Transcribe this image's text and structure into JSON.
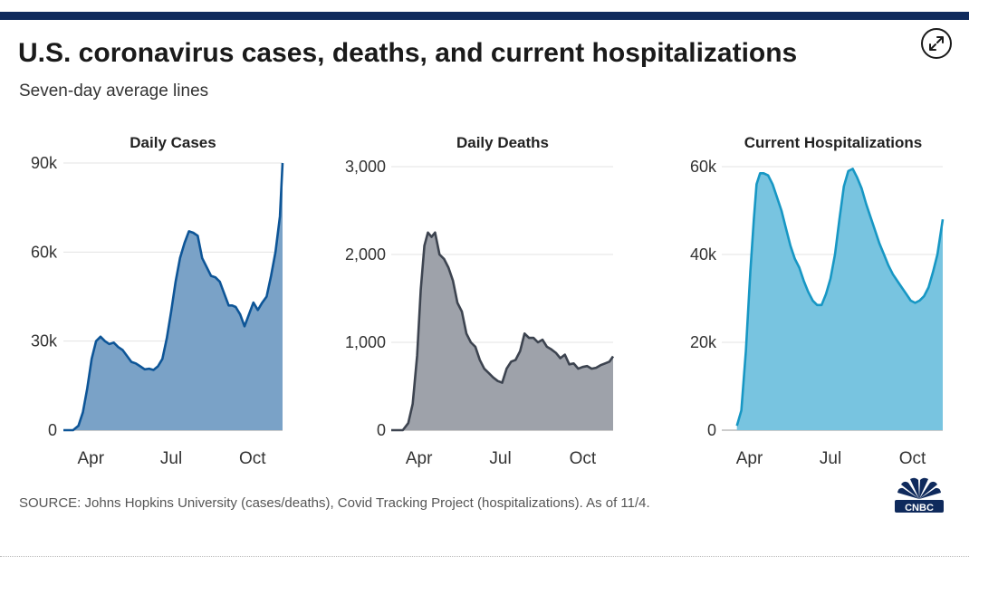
{
  "header": {
    "title": "U.S. coronavirus cases, deaths, and current hospitalizations",
    "subtitle": "Seven-day average lines"
  },
  "expand_icon": "expand-arrows-icon",
  "footer": {
    "source": "SOURCE: Johns Hopkins University (cases/deaths), Covid Tracking Project (hospitalizations). As of 11/4.",
    "logo": "CNBC"
  },
  "colors": {
    "top_bar": "#0f2a5c",
    "cases_fill": "#7aa2c7",
    "cases_line": "#0d5597",
    "deaths_fill": "#9ea2aa",
    "deaths_line": "#3d4450",
    "hosp_fill": "#78c4e0",
    "hosp_line": "#1797c4"
  },
  "chart_data": [
    {
      "type": "area",
      "title": "Daily Cases",
      "x_labels": [
        "Apr",
        "Jul",
        "Oct"
      ],
      "y_tick_labels": [
        "0",
        "30k",
        "60k",
        "90k"
      ],
      "y_ticks": [
        0,
        30000,
        60000,
        90000
      ],
      "ylim": [
        0,
        90000
      ],
      "xlim": [
        "2020-03-01",
        "2020-11-04"
      ],
      "grid": true,
      "series": [
        {
          "x": [
            "2020-03-01",
            "2020-03-12",
            "2020-03-18",
            "2020-03-23",
            "2020-03-28",
            "2020-04-02",
            "2020-04-07",
            "2020-04-12",
            "2020-04-17",
            "2020-04-22",
            "2020-04-27",
            "2020-05-02",
            "2020-05-07",
            "2020-05-12",
            "2020-05-17",
            "2020-05-22",
            "2020-05-27",
            "2020-06-01",
            "2020-06-06",
            "2020-06-11",
            "2020-06-16",
            "2020-06-21",
            "2020-06-26",
            "2020-07-01",
            "2020-07-06",
            "2020-07-11",
            "2020-07-16",
            "2020-07-21",
            "2020-07-26",
            "2020-07-31",
            "2020-08-05",
            "2020-08-10",
            "2020-08-15",
            "2020-08-20",
            "2020-08-25",
            "2020-08-30",
            "2020-09-04",
            "2020-09-08",
            "2020-09-12",
            "2020-09-17",
            "2020-09-22",
            "2020-09-27",
            "2020-10-02",
            "2020-10-07",
            "2020-10-12",
            "2020-10-17",
            "2020-10-22",
            "2020-10-27",
            "2020-11-01",
            "2020-11-04"
          ],
          "values": [
            0,
            0,
            1500,
            6000,
            14000,
            24000,
            30000,
            31500,
            30000,
            29000,
            29500,
            28000,
            27000,
            25000,
            23000,
            22500,
            21500,
            20500,
            20700,
            20300,
            21500,
            24000,
            31000,
            40000,
            50000,
            58000,
            63000,
            67000,
            66500,
            65500,
            58000,
            55000,
            52000,
            51500,
            50000,
            46000,
            42000,
            42000,
            41500,
            39000,
            35000,
            39000,
            43000,
            40500,
            43000,
            45000,
            52000,
            60000,
            72000,
            90000
          ]
        }
      ]
    },
    {
      "type": "area",
      "title": "Daily Deaths",
      "x_labels": [
        "Apr",
        "Jul",
        "Oct"
      ],
      "y_tick_labels": [
        "0",
        "1,000",
        "2,000",
        "3,000"
      ],
      "y_ticks": [
        0,
        1000,
        2000,
        3000
      ],
      "ylim": [
        0,
        3000
      ],
      "xlim": [
        "2020-03-01",
        "2020-11-04"
      ],
      "grid": true,
      "series": [
        {
          "x": [
            "2020-03-01",
            "2020-03-14",
            "2020-03-20",
            "2020-03-25",
            "2020-03-30",
            "2020-04-03",
            "2020-04-07",
            "2020-04-11",
            "2020-04-15",
            "2020-04-19",
            "2020-04-24",
            "2020-04-29",
            "2020-05-04",
            "2020-05-09",
            "2020-05-14",
            "2020-05-19",
            "2020-05-24",
            "2020-05-29",
            "2020-06-03",
            "2020-06-08",
            "2020-06-13",
            "2020-06-18",
            "2020-06-23",
            "2020-06-28",
            "2020-07-03",
            "2020-07-08",
            "2020-07-13",
            "2020-07-18",
            "2020-07-23",
            "2020-07-28",
            "2020-08-02",
            "2020-08-07",
            "2020-08-12",
            "2020-08-17",
            "2020-08-22",
            "2020-08-27",
            "2020-09-01",
            "2020-09-06",
            "2020-09-11",
            "2020-09-16",
            "2020-09-21",
            "2020-09-26",
            "2020-10-01",
            "2020-10-06",
            "2020-10-11",
            "2020-10-16",
            "2020-10-21",
            "2020-10-26",
            "2020-10-31",
            "2020-11-04"
          ],
          "values": [
            0,
            0,
            80,
            300,
            850,
            1600,
            2100,
            2250,
            2200,
            2250,
            2000,
            1950,
            1850,
            1700,
            1450,
            1350,
            1100,
            1000,
            950,
            800,
            700,
            650,
            600,
            560,
            540,
            700,
            780,
            800,
            900,
            1100,
            1050,
            1050,
            1000,
            1030,
            950,
            920,
            880,
            820,
            860,
            750,
            760,
            700,
            720,
            730,
            700,
            710,
            740,
            760,
            780,
            840
          ]
        }
      ]
    },
    {
      "type": "area",
      "title": "Current Hospitalizations",
      "x_labels": [
        "Apr",
        "Jul",
        "Oct"
      ],
      "y_tick_labels": [
        "0",
        "20k",
        "40k",
        "60k"
      ],
      "y_ticks": [
        0,
        20000,
        40000,
        60000
      ],
      "ylim": [
        0,
        60000
      ],
      "xlim": [
        "2020-03-01",
        "2020-11-04"
      ],
      "grid": true,
      "series": [
        {
          "x": [
            "2020-03-18",
            "2020-03-23",
            "2020-03-28",
            "2020-04-02",
            "2020-04-06",
            "2020-04-09",
            "2020-04-13",
            "2020-04-17",
            "2020-04-22",
            "2020-04-27",
            "2020-05-02",
            "2020-05-07",
            "2020-05-12",
            "2020-05-17",
            "2020-05-22",
            "2020-05-27",
            "2020-06-01",
            "2020-06-06",
            "2020-06-11",
            "2020-06-16",
            "2020-06-21",
            "2020-06-26",
            "2020-07-01",
            "2020-07-06",
            "2020-07-11",
            "2020-07-16",
            "2020-07-21",
            "2020-07-26",
            "2020-07-31",
            "2020-08-05",
            "2020-08-10",
            "2020-08-15",
            "2020-08-20",
            "2020-08-25",
            "2020-08-30",
            "2020-09-04",
            "2020-09-09",
            "2020-09-14",
            "2020-09-19",
            "2020-09-24",
            "2020-09-29",
            "2020-10-04",
            "2020-10-09",
            "2020-10-14",
            "2020-10-19",
            "2020-10-24",
            "2020-10-29",
            "2020-11-04"
          ],
          "values": [
            1000,
            4500,
            18000,
            36000,
            48000,
            56000,
            58500,
            58500,
            58000,
            56000,
            53000,
            50000,
            46000,
            42000,
            39000,
            37000,
            34000,
            31500,
            29500,
            28500,
            28500,
            31000,
            34500,
            40000,
            48000,
            55500,
            59000,
            59500,
            57500,
            55000,
            51500,
            48500,
            45500,
            42500,
            40000,
            37500,
            35500,
            34000,
            32500,
            31000,
            29500,
            29000,
            29500,
            30500,
            32500,
            36000,
            40000,
            48000
          ]
        }
      ]
    }
  ]
}
